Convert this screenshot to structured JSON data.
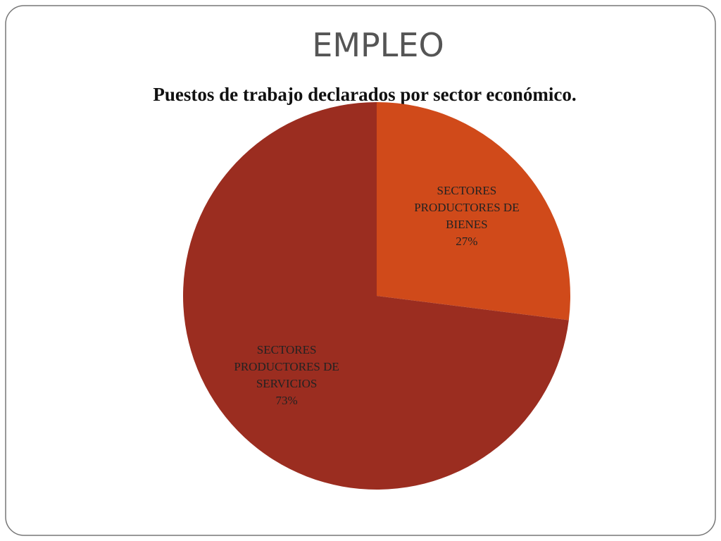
{
  "slide_title": "EMPLEO",
  "chart_data": {
    "type": "pie",
    "title": "Puestos de trabajo declarados por sector económico.",
    "categories": [
      "SECTORES PRODUCTORES DE BIENES",
      "SECTORES PRODUCTORES DE SERVICIOS"
    ],
    "values": [
      27,
      73
    ],
    "value_labels": [
      "27%",
      "73%"
    ],
    "colors": [
      "#d04a1a",
      "#9b2d20"
    ]
  }
}
